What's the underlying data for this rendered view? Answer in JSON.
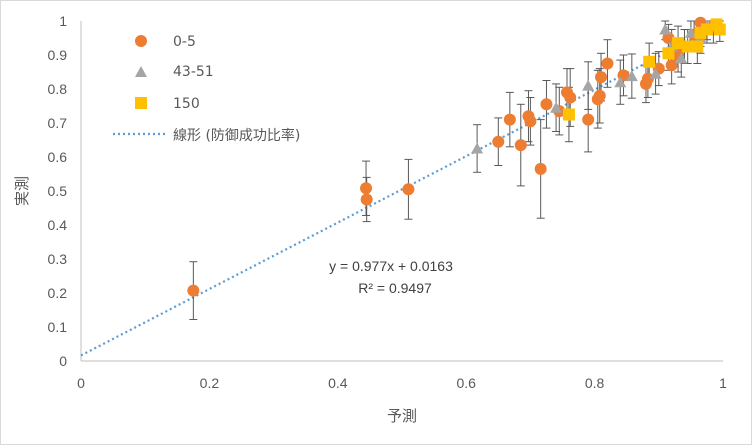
{
  "chart_data": {
    "type": "scatter",
    "xlabel": "予測",
    "ylabel": "実測",
    "xlim": [
      0,
      1
    ],
    "ylim": [
      0,
      1
    ],
    "x_ticks": [
      "0",
      "0.2",
      "0.4",
      "0.6",
      "0.8",
      "1"
    ],
    "y_ticks": [
      "0",
      "0.1",
      "0.2",
      "0.3",
      "0.4",
      "0.5",
      "0.6",
      "0.7",
      "0.8",
      "0.9",
      "1"
    ],
    "grid": false,
    "legend_position": "top-left",
    "colors": {
      "series_0_5": "#ED7D31",
      "series_43_51": "#A5A5A5",
      "series_150": "#FFC000",
      "trendline": "#5B9BD5",
      "error_bar": "#595959",
      "axis": "#bfbfbf"
    },
    "series": [
      {
        "name": "0-5",
        "marker": "circle",
        "points": [
          {
            "x": 0.175,
            "y": 0.207,
            "err": 0.085
          },
          {
            "x": 0.444,
            "y": 0.508,
            "err": 0.08
          },
          {
            "x": 0.445,
            "y": 0.475,
            "err": 0.065
          },
          {
            "x": 0.51,
            "y": 0.505,
            "err": 0.088
          },
          {
            "x": 0.65,
            "y": 0.645,
            "err": 0.07
          },
          {
            "x": 0.668,
            "y": 0.71,
            "err": 0.08
          },
          {
            "x": 0.685,
            "y": 0.635,
            "err": 0.12
          },
          {
            "x": 0.697,
            "y": 0.72,
            "err": 0.075
          },
          {
            "x": 0.7,
            "y": 0.705,
            "err": 0.07
          },
          {
            "x": 0.716,
            "y": 0.565,
            "err": 0.145
          },
          {
            "x": 0.725,
            "y": 0.755,
            "err": 0.07
          },
          {
            "x": 0.745,
            "y": 0.735,
            "err": 0.07
          },
          {
            "x": 0.757,
            "y": 0.79,
            "err": 0.07
          },
          {
            "x": 0.762,
            "y": 0.775,
            "err": 0.085
          },
          {
            "x": 0.79,
            "y": 0.71,
            "err": 0.095
          },
          {
            "x": 0.805,
            "y": 0.77,
            "err": 0.085
          },
          {
            "x": 0.808,
            "y": 0.78,
            "err": 0.08
          },
          {
            "x": 0.81,
            "y": 0.835,
            "err": 0.07
          },
          {
            "x": 0.82,
            "y": 0.875,
            "err": 0.07
          },
          {
            "x": 0.845,
            "y": 0.84,
            "err": 0.06
          },
          {
            "x": 0.88,
            "y": 0.815,
            "err": 0.055
          },
          {
            "x": 0.883,
            "y": 0.83,
            "err": 0.055
          },
          {
            "x": 0.9,
            "y": 0.86,
            "err": 0.05
          },
          {
            "x": 0.915,
            "y": 0.95,
            "err": 0.04
          },
          {
            "x": 0.92,
            "y": 0.87,
            "err": 0.055
          },
          {
            "x": 0.93,
            "y": 0.9,
            "err": 0.05
          },
          {
            "x": 0.94,
            "y": 0.925,
            "err": 0.05
          },
          {
            "x": 0.955,
            "y": 0.96,
            "err": 0.05
          },
          {
            "x": 0.965,
            "y": 0.995,
            "err": 0.05
          },
          {
            "x": 0.985,
            "y": 0.985,
            "err": 0.05
          }
        ]
      },
      {
        "name": "43-51",
        "marker": "triangle",
        "points": [
          {
            "x": 0.617,
            "y": 0.625,
            "err": 0.07
          },
          {
            "x": 0.74,
            "y": 0.745,
            "err": 0.07
          },
          {
            "x": 0.79,
            "y": 0.81,
            "err": 0.07
          },
          {
            "x": 0.84,
            "y": 0.82,
            "err": 0.065
          },
          {
            "x": 0.858,
            "y": 0.838,
            "err": 0.065
          },
          {
            "x": 0.895,
            "y": 0.845,
            "err": 0.06
          },
          {
            "x": 0.91,
            "y": 0.975,
            "err": 0.03
          },
          {
            "x": 0.92,
            "y": 0.925,
            "err": 0.05
          },
          {
            "x": 0.935,
            "y": 0.89,
            "err": 0.055
          },
          {
            "x": 0.95,
            "y": 0.965,
            "err": 0.04
          },
          {
            "x": 0.965,
            "y": 0.95,
            "err": 0.045
          },
          {
            "x": 0.975,
            "y": 0.985,
            "err": 0.04
          }
        ]
      },
      {
        "name": "150",
        "marker": "square",
        "points": [
          {
            "x": 0.76,
            "y": 0.725,
            "err": 0.08
          },
          {
            "x": 0.885,
            "y": 0.88,
            "err": 0.055
          },
          {
            "x": 0.915,
            "y": 0.905,
            "err": 0.05
          },
          {
            "x": 0.93,
            "y": 0.935,
            "err": 0.05
          },
          {
            "x": 0.945,
            "y": 0.925,
            "err": 0.05
          },
          {
            "x": 0.96,
            "y": 0.925,
            "err": 0.05
          },
          {
            "x": 0.965,
            "y": 0.965,
            "err": 0.04
          },
          {
            "x": 0.975,
            "y": 0.975,
            "err": 0.04
          },
          {
            "x": 0.99,
            "y": 0.99,
            "err": 0.03
          },
          {
            "x": 0.995,
            "y": 0.975,
            "err": 0.035
          }
        ]
      }
    ],
    "trendline": {
      "name": "線形 (防御成功比率)",
      "slope": 0.977,
      "intercept": 0.0163,
      "equation": "y = 0.977x + 0.0163",
      "r_squared": "R² = 0.9497"
    }
  }
}
